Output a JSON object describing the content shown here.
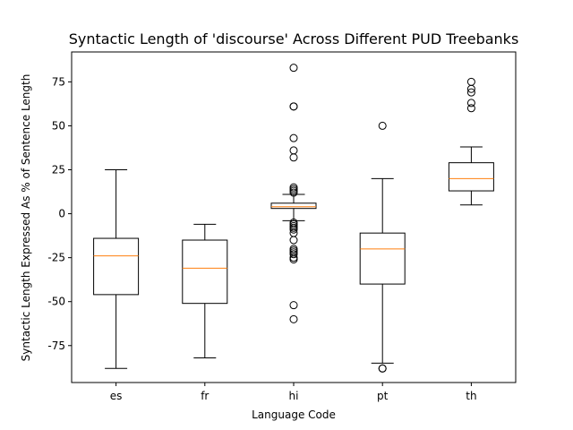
{
  "chart_data": {
    "type": "box",
    "title": "Syntactic Length of 'discourse' Across Different PUD Treebanks",
    "xlabel": "Language Code",
    "ylabel": "Syntactic Length Expressed As % of Sentence Length",
    "ylim": [
      -96,
      92
    ],
    "yticks": [
      -75,
      -50,
      -25,
      0,
      25,
      50,
      75
    ],
    "grid": false,
    "colors": {
      "box": "#000000",
      "median": "#ff7f0e",
      "flier": "#000000"
    },
    "categories": [
      "es",
      "fr",
      "hi",
      "pt",
      "th"
    ],
    "boxes": [
      {
        "category": "es",
        "whisker_low": -88,
        "q1": -46,
        "median": -24,
        "q3": -14,
        "whisker_high": 25,
        "outliers": []
      },
      {
        "category": "fr",
        "whisker_low": -82,
        "q1": -51,
        "median": -31,
        "q3": -15,
        "whisker_high": -6,
        "outliers": []
      },
      {
        "category": "hi",
        "whisker_low": -4,
        "q1": 3,
        "median": 4,
        "q3": 6,
        "whisker_high": 11,
        "outliers": [
          83,
          61,
          61,
          43,
          36,
          32,
          15,
          14,
          13,
          12,
          -5,
          -6,
          -7,
          -8,
          -9,
          -11,
          -15,
          -20,
          -21,
          -22,
          -23,
          -25,
          -26,
          -52,
          -60
        ]
      },
      {
        "category": "pt",
        "whisker_low": -85,
        "q1": -40,
        "median": -20,
        "q3": -11,
        "whisker_high": 20,
        "outliers": [
          50,
          -88,
          -88
        ]
      },
      {
        "category": "th",
        "whisker_low": 5,
        "q1": 13,
        "median": 20,
        "q3": 29,
        "whisker_high": 38,
        "outliers": [
          75,
          71,
          69,
          63,
          60
        ]
      }
    ]
  }
}
